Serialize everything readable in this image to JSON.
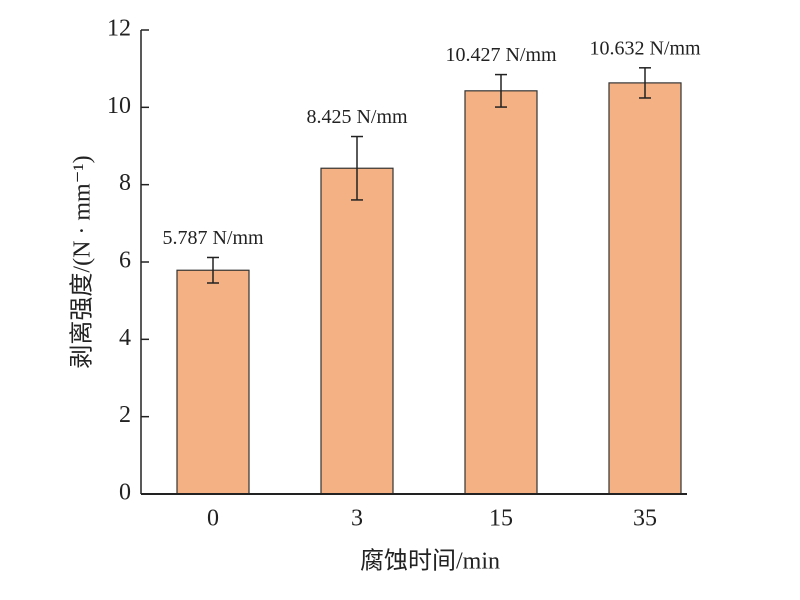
{
  "chart_data": {
    "type": "bar",
    "x_label": "腐蚀时间/min",
    "y_label": "剥离强度/(N · mm⁻¹)",
    "categories": [
      "0",
      "3",
      "15",
      "35"
    ],
    "values": [
      5.787,
      8.425,
      10.427,
      10.632
    ],
    "value_labels": [
      "5.787 N/mm",
      "8.425 N/mm",
      "10.427 N/mm",
      "10.632 N/mm"
    ],
    "errors": [
      0.33,
      0.82,
      0.42,
      0.39
    ],
    "color": "#f4b183",
    "ylim": [
      0,
      12
    ],
    "yticks": [
      0,
      2,
      4,
      6,
      8,
      10,
      12
    ]
  }
}
